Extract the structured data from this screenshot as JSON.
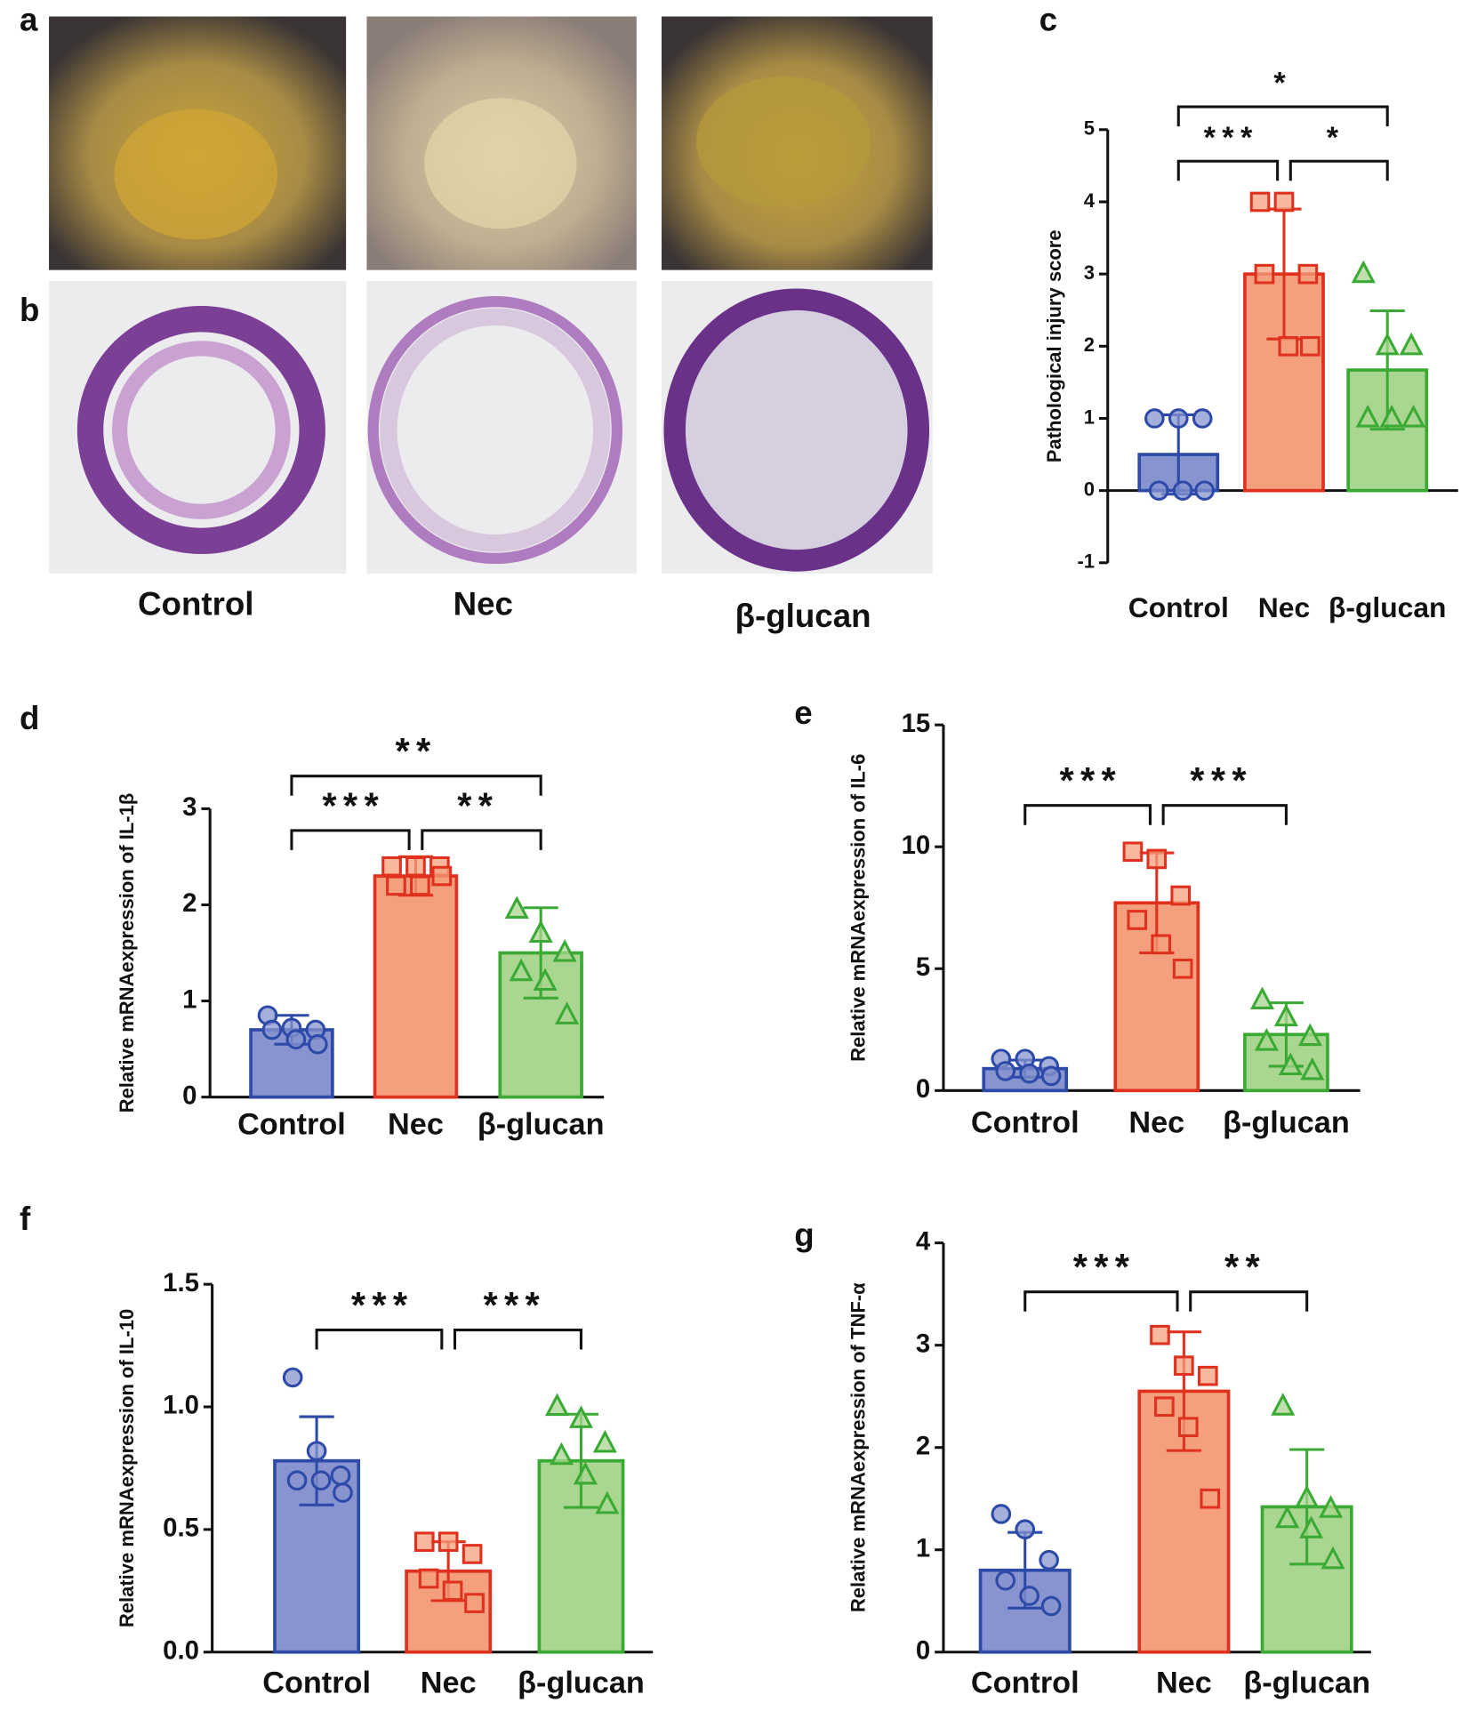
{
  "panels": {
    "a": "a",
    "b": "b",
    "groups": [
      "Control",
      "Nec",
      "β-glucan"
    ]
  },
  "chart_data": [
    {
      "type": "bar",
      "panel": "c",
      "ylabel": "Pathological injury score",
      "categories": [
        "Control",
        "Nec",
        "β-glucan"
      ],
      "colors": [
        "#8794cf",
        "#f4a07e",
        "#a9d690"
      ],
      "edge_colors": [
        "#2d4aa8",
        "#e0301e",
        "#3aaa35"
      ],
      "markers": [
        "circle",
        "square",
        "triangle"
      ],
      "values": [
        0.5,
        3,
        1.67
      ],
      "errors": [
        0.55,
        0.9,
        0.82
      ],
      "points": [
        [
          1,
          1,
          1,
          0,
          0,
          0
        ],
        [
          4,
          4,
          3,
          3,
          2,
          2
        ],
        [
          3,
          2,
          2,
          1,
          1,
          1
        ]
      ],
      "significance": [
        {
          "groups": [
            0,
            1
          ],
          "label": "***"
        },
        {
          "groups": [
            1,
            2
          ],
          "label": "*"
        },
        {
          "groups": [
            0,
            2
          ],
          "label": "*"
        }
      ],
      "ylim": [
        -1,
        5
      ],
      "yticks": [
        -1,
        0,
        1,
        2,
        3,
        4,
        5
      ]
    },
    {
      "type": "bar",
      "panel": "d",
      "ylabel": "Relative mRNAexpression of IL-1β",
      "categories": [
        "Control",
        "Nec",
        "β-glucan"
      ],
      "colors": [
        "#8794cf",
        "#f4a07e",
        "#a9d690"
      ],
      "edge_colors": [
        "#2d4aa8",
        "#e0301e",
        "#3aaa35"
      ],
      "markers": [
        "circle",
        "square",
        "triangle"
      ],
      "values": [
        0.7,
        2.3,
        1.5
      ],
      "errors": [
        0.15,
        0.2,
        0.47
      ],
      "points": [
        [
          0.85,
          0.72,
          0.7,
          0.7,
          0.6,
          0.55
        ],
        [
          2.4,
          2.4,
          2.4,
          2.2,
          2.2,
          2.3
        ],
        [
          1.95,
          1.7,
          1.5,
          1.3,
          1.2,
          0.85
        ]
      ],
      "significance": [
        {
          "groups": [
            0,
            1
          ],
          "label": "***"
        },
        {
          "groups": [
            1,
            2
          ],
          "label": "**"
        },
        {
          "groups": [
            0,
            2
          ],
          "label": "**"
        }
      ],
      "ylim": [
        0,
        3
      ],
      "yticks": [
        0,
        1,
        2,
        3
      ]
    },
    {
      "type": "bar",
      "panel": "e",
      "ylabel": "Relative mRNAexpression of IL-6",
      "categories": [
        "Control",
        "Nec",
        "β-glucan"
      ],
      "colors": [
        "#8794cf",
        "#f4a07e",
        "#a9d690"
      ],
      "edge_colors": [
        "#2d4aa8",
        "#e0301e",
        "#3aaa35"
      ],
      "markers": [
        "circle",
        "square",
        "triangle"
      ],
      "values": [
        0.9,
        7.7,
        2.3
      ],
      "errors": [
        0.35,
        2.05,
        1.3
      ],
      "points": [
        [
          1.3,
          1.3,
          1.0,
          0.8,
          0.7,
          0.6
        ],
        [
          9.8,
          9.5,
          8.0,
          7.0,
          6.0,
          5.0
        ],
        [
          3.7,
          3.0,
          2.2,
          2.0,
          1.0,
          0.8
        ]
      ],
      "significance": [
        {
          "groups": [
            0,
            1
          ],
          "label": "***"
        },
        {
          "groups": [
            1,
            2
          ],
          "label": "***"
        }
      ],
      "ylim": [
        0,
        15
      ],
      "yticks": [
        0,
        5,
        10,
        15
      ]
    },
    {
      "type": "bar",
      "panel": "f",
      "ylabel": "Relative mRNAexpression of IL-10",
      "categories": [
        "Control",
        "Nec",
        "β-glucan"
      ],
      "colors": [
        "#8794cf",
        "#f4a07e",
        "#a9d690"
      ],
      "edge_colors": [
        "#2d4aa8",
        "#e0301e",
        "#3aaa35"
      ],
      "markers": [
        "circle",
        "square",
        "triangle"
      ],
      "values": [
        0.78,
        0.33,
        0.78
      ],
      "errors": [
        0.18,
        0.12,
        0.19
      ],
      "points": [
        [
          1.12,
          0.82,
          0.72,
          0.7,
          0.7,
          0.65
        ],
        [
          0.45,
          0.45,
          0.4,
          0.3,
          0.25,
          0.2
        ],
        [
          1.0,
          0.95,
          0.85,
          0.8,
          0.72,
          0.6
        ]
      ],
      "significance": [
        {
          "groups": [
            0,
            1
          ],
          "label": "***"
        },
        {
          "groups": [
            1,
            2
          ],
          "label": "***"
        }
      ],
      "ylim": [
        0,
        1.5
      ],
      "yticks": [
        {
          "value": 0,
          "label": "0.0"
        },
        0.5,
        {
          "value": 1,
          "label": "1.0"
        },
        1.5
      ]
    },
    {
      "type": "bar",
      "panel": "g",
      "ylabel": "Relative mRNAexpression of  TNF-α",
      "categories": [
        "Control",
        "Nec",
        "β-glucan"
      ],
      "colors": [
        "#8794cf",
        "#f4a07e",
        "#a9d690"
      ],
      "edge_colors": [
        "#2d4aa8",
        "#e0301e",
        "#3aaa35"
      ],
      "markers": [
        "circle",
        "square",
        "triangle"
      ],
      "values": [
        0.8,
        2.55,
        1.42
      ],
      "errors": [
        0.37,
        0.58,
        0.56
      ],
      "points": [
        [
          1.35,
          1.2,
          0.9,
          0.7,
          0.55,
          0.45
        ],
        [
          3.1,
          2.8,
          2.7,
          2.4,
          2.2,
          1.5
        ],
        [
          2.4,
          1.5,
          1.4,
          1.3,
          1.2,
          0.9
        ]
      ],
      "significance": [
        {
          "groups": [
            0,
            1
          ],
          "label": "***"
        },
        {
          "groups": [
            1,
            2
          ],
          "label": "**"
        }
      ],
      "ylim": [
        0,
        4
      ],
      "yticks": [
        0,
        1,
        2,
        3,
        4
      ]
    }
  ]
}
